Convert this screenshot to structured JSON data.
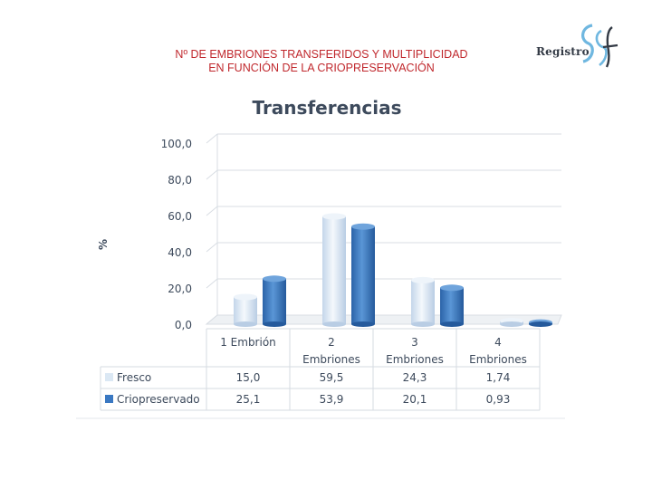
{
  "header": {
    "title_line1": "Nº DE EMBRIONES TRANSFERIDOS Y MULTIPLICIDAD",
    "title_line2": "EN FUNCIÓN DE LA CRIOPRESERVACIÓN"
  },
  "logo": {
    "text": "Registro"
  },
  "colors": {
    "fresco": "#dbe8f4",
    "crio": "#3a78c2",
    "title": "#c0282d"
  },
  "chart_data": {
    "type": "bar",
    "title": "Transferencias",
    "ylabel": "%",
    "ylim": [
      0,
      100
    ],
    "yticks": [
      "100,0",
      "80,0",
      "60,0",
      "40,0",
      "20,0",
      "0,0"
    ],
    "ytick_values": [
      100,
      80,
      60,
      40,
      20,
      0
    ],
    "categories": [
      [
        "1 Embrión"
      ],
      [
        "2",
        "Embriones"
      ],
      [
        "3",
        "Embriones"
      ],
      [
        "4",
        "Embriones"
      ]
    ],
    "series": [
      {
        "name": "Fresco",
        "values": [
          15.0,
          59.5,
          24.3,
          1.74
        ],
        "labels": [
          "15,0",
          "59,5",
          "24,3",
          "1,74"
        ]
      },
      {
        "name": "Criopreservado",
        "values": [
          25.1,
          53.9,
          20.1,
          0.93
        ],
        "labels": [
          "25,1",
          "53,9",
          "20,1",
          "0,93"
        ]
      }
    ],
    "grid": true,
    "legend": "data-table"
  }
}
